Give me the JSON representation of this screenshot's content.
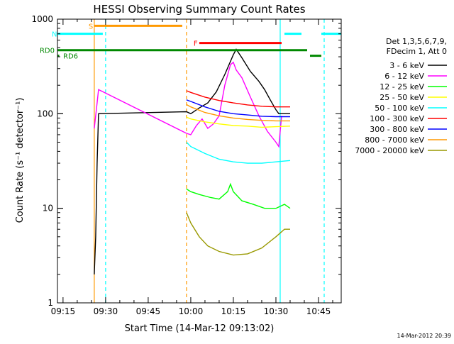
{
  "chart_data": {
    "type": "line",
    "title": "HESSI Observing Summary Count Rates",
    "xlabel": "Start Time (14-Mar-12 09:13:02)",
    "ylabel": "Count Rate (s⁻¹ detector⁻¹)",
    "yscale": "log",
    "xlim": [
      "09:13:02",
      "10:53:00"
    ],
    "ylim": [
      1,
      1000
    ],
    "x_ticks": [
      "09:15",
      "09:30",
      "09:45",
      "10:00",
      "10:15",
      "10:30",
      "10:45"
    ],
    "y_ticks": [
      1,
      10,
      100,
      1000
    ],
    "grid": false,
    "legend_placement": "right",
    "legend_header": [
      "Det 1,3,5,6,7,9,",
      "FDecim 1, Att 0"
    ],
    "series": [
      {
        "name": "3 - 6 keV",
        "color": "#000000",
        "points": [
          [
            "09:26",
            2
          ],
          [
            "09:26:30",
            5
          ],
          [
            "09:27",
            30
          ],
          [
            "09:27:30",
            100
          ],
          [
            "09:58:30",
            105
          ],
          [
            "10:00",
            100
          ],
          [
            "10:03",
            115
          ],
          [
            "10:06",
            130
          ],
          [
            "10:09",
            170
          ],
          [
            "10:12",
            260
          ],
          [
            "10:15",
            420
          ],
          [
            "10:16",
            480
          ],
          [
            "10:18",
            390
          ],
          [
            "10:21",
            280
          ],
          [
            "10:24",
            220
          ],
          [
            "10:26",
            180
          ],
          [
            "10:28",
            140
          ],
          [
            "10:30",
            110
          ],
          [
            "10:31",
            100
          ],
          [
            "10:33",
            100
          ],
          [
            "10:35",
            100
          ]
        ]
      },
      {
        "name": "6 - 12 keV",
        "color": "#ff00ff",
        "points": [
          [
            "09:26",
            70
          ],
          [
            "09:27",
            130
          ],
          [
            "09:27:30",
            180
          ],
          [
            "09:58:30",
            62
          ],
          [
            "10:00",
            60
          ],
          [
            "10:02",
            75
          ],
          [
            "10:04",
            88
          ],
          [
            "10:06",
            70
          ],
          [
            "10:08",
            78
          ],
          [
            "10:10",
            95
          ],
          [
            "10:12",
            200
          ],
          [
            "10:14",
            330
          ],
          [
            "10:15",
            350
          ],
          [
            "10:16",
            290
          ],
          [
            "10:18",
            240
          ],
          [
            "10:21",
            150
          ],
          [
            "10:24",
            95
          ],
          [
            "10:27",
            65
          ],
          [
            "10:30",
            50
          ],
          [
            "10:31",
            45
          ],
          [
            "10:32",
            95
          ]
        ]
      },
      {
        "name": "12 - 25 keV",
        "color": "#00ff00",
        "points": [
          [
            "09:58:30",
            16
          ],
          [
            "10:00",
            15
          ],
          [
            "10:03",
            14
          ],
          [
            "10:07",
            13
          ],
          [
            "10:10",
            12.5
          ],
          [
            "10:13",
            15
          ],
          [
            "10:14",
            18
          ],
          [
            "10:15",
            15
          ],
          [
            "10:18",
            12
          ],
          [
            "10:22",
            11
          ],
          [
            "10:26",
            10
          ],
          [
            "10:30",
            10
          ],
          [
            "10:33",
            11
          ],
          [
            "10:35",
            10
          ]
        ]
      },
      {
        "name": "25 - 50 keV",
        "color": "#ffff00",
        "points": [
          [
            "09:58:30",
            92
          ],
          [
            "10:00",
            88
          ],
          [
            "10:05",
            82
          ],
          [
            "10:10",
            78
          ],
          [
            "10:15",
            75
          ],
          [
            "10:20",
            74
          ],
          [
            "10:25",
            72
          ],
          [
            "10:30",
            73
          ],
          [
            "10:35",
            74
          ]
        ]
      },
      {
        "name": "50 - 100 keV",
        "color": "#00ffff",
        "points": [
          [
            "09:58:30",
            50
          ],
          [
            "10:00",
            45
          ],
          [
            "10:05",
            38
          ],
          [
            "10:10",
            33
          ],
          [
            "10:15",
            31
          ],
          [
            "10:20",
            30
          ],
          [
            "10:25",
            30
          ],
          [
            "10:30",
            31
          ],
          [
            "10:35",
            32
          ]
        ]
      },
      {
        "name": "100 - 300 keV",
        "color": "#ff0000",
        "points": [
          [
            "09:58:30",
            175
          ],
          [
            "10:00",
            168
          ],
          [
            "10:05",
            150
          ],
          [
            "10:10",
            138
          ],
          [
            "10:15",
            130
          ],
          [
            "10:20",
            124
          ],
          [
            "10:25",
            120
          ],
          [
            "10:30",
            118
          ],
          [
            "10:35",
            118
          ]
        ]
      },
      {
        "name": "300 - 800 keV",
        "color": "#0000ff",
        "points": [
          [
            "09:58:30",
            140
          ],
          [
            "10:00",
            135
          ],
          [
            "10:05",
            118
          ],
          [
            "10:10",
            106
          ],
          [
            "10:15",
            100
          ],
          [
            "10:20",
            97
          ],
          [
            "10:25",
            94
          ],
          [
            "10:30",
            93
          ],
          [
            "10:35",
            93
          ]
        ]
      },
      {
        "name": "800 - 7000 keV",
        "color": "#ff9900",
        "points": [
          [
            "09:58:30",
            125
          ],
          [
            "10:00",
            118
          ],
          [
            "10:05",
            103
          ],
          [
            "10:10",
            95
          ],
          [
            "10:15",
            90
          ],
          [
            "10:20",
            87
          ],
          [
            "10:25",
            85
          ],
          [
            "10:30",
            84
          ],
          [
            "10:35",
            84
          ]
        ]
      },
      {
        "name": "7000 - 20000 keV",
        "color": "#999900",
        "points": [
          [
            "09:58:30",
            9
          ],
          [
            "10:00",
            7
          ],
          [
            "10:03",
            5
          ],
          [
            "10:06",
            4
          ],
          [
            "10:10",
            3.5
          ],
          [
            "10:15",
            3.2
          ],
          [
            "10:20",
            3.3
          ],
          [
            "10:25",
            3.8
          ],
          [
            "10:30",
            5
          ],
          [
            "10:33",
            6
          ],
          [
            "10:35",
            6
          ]
        ]
      }
    ],
    "flags": [
      {
        "label": "S",
        "color": "#ff9900",
        "start": "09:26",
        "end": "09:57",
        "y": 850
      },
      {
        "label": "N",
        "color": "#00ffff",
        "start": "09:13:02",
        "end": "09:29",
        "y": 700
      },
      {
        "label": "",
        "color": "#00ffff",
        "start": "10:33",
        "end": "10:39",
        "y": 700
      },
      {
        "label": "",
        "color": "#00ffff",
        "start": "10:46",
        "end": "10:53",
        "y": 700
      },
      {
        "label": "F",
        "color": "#ff0000",
        "start": "10:03",
        "end": "10:32",
        "y": 560
      },
      {
        "label": "RD0",
        "color": "#008800",
        "start": "09:13:02",
        "end": "10:41",
        "y": 470
      },
      {
        "label": "RD6",
        "color": "#008800",
        "start": "09:13:02",
        "end": "09:13:40",
        "y": 410
      },
      {
        "label": "",
        "color": "#008800",
        "start": "10:42",
        "end": "10:46",
        "y": 410
      }
    ],
    "vlines": [
      {
        "time": "09:26",
        "color": "#ff9900",
        "style": "solid"
      },
      {
        "time": "09:30",
        "color": "#00ffff",
        "style": "dashed"
      },
      {
        "time": "09:58:30",
        "color": "#ff9900",
        "style": "dashed"
      },
      {
        "time": "10:31:30",
        "color": "#00ffff",
        "style": "solid"
      },
      {
        "time": "10:47",
        "color": "#00ffff",
        "style": "dashed"
      }
    ]
  },
  "footer": {
    "timestamp": "14-Mar-2012 20:39"
  }
}
